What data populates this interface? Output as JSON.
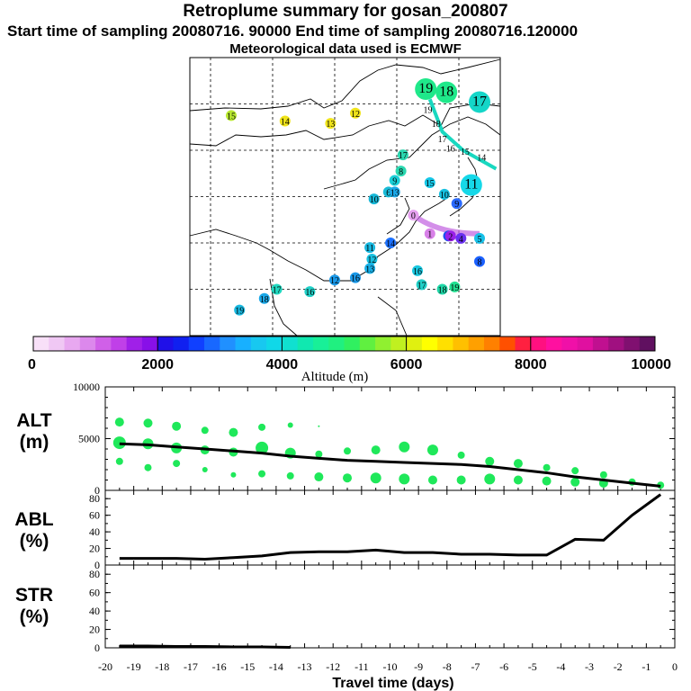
{
  "titles": {
    "main": "Retroplume summary for gosan_200807",
    "sampling": "Start time of sampling 20080716. 90000     End time of sampling 20080716.120000",
    "met": "Meteorological data used is ECMWF"
  },
  "map": {
    "labels": [
      {
        "t": "19",
        "lon": 127.0,
        "lat": 73.2,
        "c": "#1fe88a",
        "big": true
      },
      {
        "t": "18",
        "lon": 132.0,
        "lat": 72.5,
        "c": "#1fe88a",
        "big": true
      },
      {
        "t": "17",
        "lon": 140.0,
        "lat": 70.4,
        "c": "#14d6c8",
        "big": true
      },
      {
        "t": "15",
        "lon": 80.0,
        "lat": 67.5,
        "c": "#b8e830"
      },
      {
        "t": "14",
        "lon": 93.0,
        "lat": 66.3,
        "c": "#f0e41a"
      },
      {
        "t": "13",
        "lon": 104.0,
        "lat": 65.8,
        "c": "#f0e41a"
      },
      {
        "t": "12",
        "lon": 110.0,
        "lat": 68.0,
        "c": "#f0e41a"
      },
      {
        "t": "11",
        "lon": 138.0,
        "lat": 52.5,
        "c": "#16d8e8",
        "big": true
      },
      {
        "t": "9",
        "lon": 134.5,
        "lat": 48.5,
        "c": "#2a6aff"
      },
      {
        "t": "6",
        "lon": 132.5,
        "lat": 41.5,
        "c": "#1a4ff0"
      },
      {
        "t": "4",
        "lon": 135.5,
        "lat": 41.0,
        "c": "#6a30f0"
      },
      {
        "t": "2",
        "lon": 133.0,
        "lat": 41.5,
        "c": "#9a20e8"
      },
      {
        "t": "1",
        "lon": 128.0,
        "lat": 42.0,
        "c": "#d880e8"
      },
      {
        "t": "0",
        "lon": 124.0,
        "lat": 46.0,
        "c": "#e6a0f0"
      },
      {
        "t": "17",
        "lon": 121.5,
        "lat": 59.0,
        "c": "#2ad8b0"
      },
      {
        "t": "8",
        "lon": 121.0,
        "lat": 55.5,
        "c": "#2ad8b0"
      },
      {
        "t": "9",
        "lon": 119.5,
        "lat": 53.5,
        "c": "#1ad0d8"
      },
      {
        "t": "6",
        "lon": 118.0,
        "lat": 51.0,
        "c": "#1abcd8"
      },
      {
        "t": "13",
        "lon": 119.5,
        "lat": 51.0,
        "c": "#1aa8e8"
      },
      {
        "t": "10",
        "lon": 114.5,
        "lat": 49.5,
        "c": "#16b8d8"
      },
      {
        "t": "15",
        "lon": 128.0,
        "lat": 53.0,
        "c": "#16c8e8"
      },
      {
        "t": "10",
        "lon": 131.5,
        "lat": 50.5,
        "c": "#16c0e0"
      },
      {
        "t": "11",
        "lon": 113.5,
        "lat": 39.0,
        "c": "#18b8e0"
      },
      {
        "t": "14",
        "lon": 118.5,
        "lat": 40.0,
        "c": "#1a70ff"
      },
      {
        "t": "12",
        "lon": 114.0,
        "lat": 36.5,
        "c": "#18c0e0"
      },
      {
        "t": "13",
        "lon": 113.5,
        "lat": 34.5,
        "c": "#18b0e8"
      },
      {
        "t": "16",
        "lon": 125.0,
        "lat": 34.0,
        "c": "#18c8e0"
      },
      {
        "t": "16",
        "lon": 110.0,
        "lat": 32.5,
        "c": "#1898e8"
      },
      {
        "t": "12",
        "lon": 105.0,
        "lat": 32.0,
        "c": "#1898e8"
      },
      {
        "t": "17",
        "lon": 126.0,
        "lat": 31.0,
        "c": "#20d0c8"
      },
      {
        "t": "18",
        "lon": 131.0,
        "lat": 30.0,
        "c": "#20d8a8"
      },
      {
        "t": "19",
        "lon": 134.0,
        "lat": 30.5,
        "c": "#20e090"
      },
      {
        "t": "17",
        "lon": 91.0,
        "lat": 30.0,
        "c": "#20d8c0"
      },
      {
        "t": "16",
        "lon": 99.0,
        "lat": 29.5,
        "c": "#20d0c8"
      },
      {
        "t": "18",
        "lon": 88.0,
        "lat": 28.0,
        "c": "#1aa8e8"
      },
      {
        "t": "19",
        "lon": 82.0,
        "lat": 25.5,
        "c": "#18b8e0"
      },
      {
        "t": "8",
        "lon": 140.0,
        "lat": 36.0,
        "c": "#1a60ff"
      },
      {
        "t": "5",
        "lon": 140.0,
        "lat": 41.0,
        "c": "#16c0e8"
      },
      {
        "t": "19",
        "lon": 127.5,
        "lat": 68.8,
        "c": "#ffffff"
      },
      {
        "t": "18",
        "lon": 129.5,
        "lat": 65.8,
        "c": "#ffffff"
      },
      {
        "t": "17",
        "lon": 131.0,
        "lat": 62.5,
        "c": "#ffffff"
      },
      {
        "t": "16",
        "lon": 133.0,
        "lat": 60.5,
        "c": "#ffffff"
      },
      {
        "t": "15",
        "lon": 136.5,
        "lat": 59.8,
        "c": "#ffffff"
      },
      {
        "t": "14",
        "lon": 140.5,
        "lat": 58.5,
        "c": "#ffffff"
      }
    ]
  },
  "colorbar": {
    "ticks": [
      "0",
      "2000",
      "4000",
      "6000",
      "8000",
      "10000"
    ],
    "label": "Altitude (m)",
    "colors": [
      "#f8e0f8",
      "#f0c8f4",
      "#e8a8f0",
      "#dc88ec",
      "#d060e8",
      "#c040e8",
      "#a020e8",
      "#8810e8",
      "#2010e8",
      "#1020f0",
      "#1040ff",
      "#1868ff",
      "#2090ff",
      "#18b0ff",
      "#18c8f0",
      "#10d8e8",
      "#10e0d0",
      "#10e8b0",
      "#18f098",
      "#20f080",
      "#30f060",
      "#60f040",
      "#90f030",
      "#c0f020",
      "#e0f010",
      "#ffff00",
      "#ffe000",
      "#ffc000",
      "#ffa000",
      "#ff8000",
      "#ff5000",
      "#ff2040",
      "#ff1080",
      "#ff10a0",
      "#f010a8",
      "#e010a0",
      "#c01090",
      "#a01080",
      "#801070",
      "#601060"
    ]
  },
  "chart_data": [
    {
      "type": "scatter",
      "ylabel": "ALT\n(m)",
      "ylim": [
        0,
        10000
      ],
      "yticks": [
        "0",
        "5000",
        "10000"
      ],
      "x": [
        -19.5,
        -18.5,
        -17.5,
        -16.5,
        -15.5,
        -14.5,
        -13.5,
        -12.5,
        -11.5,
        -10.5,
        -9.5,
        -8.5,
        -7.5,
        -6.5,
        -5.5,
        -4.5,
        -3.5,
        -2.5,
        -1.5,
        -0.5
      ],
      "mean": [
        4500,
        4400,
        4200,
        4000,
        3800,
        3600,
        3300,
        3100,
        2900,
        2800,
        2700,
        2600,
        2500,
        2300,
        2000,
        1700,
        1300,
        1000,
        700,
        400
      ],
      "blob_color": "#1fe85a",
      "blobs": [
        {
          "x": -19.5,
          "y": 6600,
          "r": 5
        },
        {
          "x": -19.5,
          "y": 4600,
          "r": 7
        },
        {
          "x": -19.5,
          "y": 2800,
          "r": 4
        },
        {
          "x": -18.5,
          "y": 6500,
          "r": 5
        },
        {
          "x": -18.5,
          "y": 4500,
          "r": 6
        },
        {
          "x": -18.5,
          "y": 2200,
          "r": 4
        },
        {
          "x": -17.5,
          "y": 6200,
          "r": 5
        },
        {
          "x": -17.5,
          "y": 4100,
          "r": 6
        },
        {
          "x": -17.5,
          "y": 2600,
          "r": 4
        },
        {
          "x": -16.5,
          "y": 5800,
          "r": 4
        },
        {
          "x": -16.5,
          "y": 3900,
          "r": 5
        },
        {
          "x": -16.5,
          "y": 2000,
          "r": 3
        },
        {
          "x": -15.5,
          "y": 5600,
          "r": 5
        },
        {
          "x": -15.5,
          "y": 3700,
          "r": 5
        },
        {
          "x": -15.5,
          "y": 1500,
          "r": 3
        },
        {
          "x": -14.5,
          "y": 6100,
          "r": 4
        },
        {
          "x": -14.5,
          "y": 4100,
          "r": 7
        },
        {
          "x": -14.5,
          "y": 1600,
          "r": 4
        },
        {
          "x": -13.5,
          "y": 6300,
          "r": 3
        },
        {
          "x": -13.5,
          "y": 3600,
          "r": 6
        },
        {
          "x": -13.5,
          "y": 1400,
          "r": 4
        },
        {
          "x": -12.5,
          "y": 6200,
          "r": 1
        },
        {
          "x": -12.5,
          "y": 3500,
          "r": 4
        },
        {
          "x": -12.5,
          "y": 1300,
          "r": 5
        },
        {
          "x": -11.5,
          "y": 3800,
          "r": 4
        },
        {
          "x": -11.5,
          "y": 1200,
          "r": 5
        },
        {
          "x": -10.5,
          "y": 3900,
          "r": 5
        },
        {
          "x": -10.5,
          "y": 1200,
          "r": 6
        },
        {
          "x": -9.5,
          "y": 4200,
          "r": 6
        },
        {
          "x": -9.5,
          "y": 1100,
          "r": 6
        },
        {
          "x": -8.5,
          "y": 3900,
          "r": 6
        },
        {
          "x": -8.5,
          "y": 1000,
          "r": 5
        },
        {
          "x": -7.5,
          "y": 3400,
          "r": 4
        },
        {
          "x": -7.5,
          "y": 1000,
          "r": 5
        },
        {
          "x": -6.5,
          "y": 2800,
          "r": 5
        },
        {
          "x": -6.5,
          "y": 1100,
          "r": 6
        },
        {
          "x": -5.5,
          "y": 2600,
          "r": 5
        },
        {
          "x": -5.5,
          "y": 1000,
          "r": 5
        },
        {
          "x": -4.5,
          "y": 2200,
          "r": 4
        },
        {
          "x": -4.5,
          "y": 900,
          "r": 5
        },
        {
          "x": -3.5,
          "y": 1900,
          "r": 4
        },
        {
          "x": -3.5,
          "y": 800,
          "r": 5
        },
        {
          "x": -2.5,
          "y": 1500,
          "r": 4
        },
        {
          "x": -2.5,
          "y": 700,
          "r": 5
        },
        {
          "x": -1.5,
          "y": 800,
          "r": 4
        },
        {
          "x": -0.5,
          "y": 500,
          "r": 4
        }
      ]
    },
    {
      "type": "line",
      "ylabel": "ABL\n(%)",
      "ylim": [
        0,
        90
      ],
      "yticks": [
        "0",
        "20",
        "40",
        "60",
        "80"
      ],
      "x": [
        -19.5,
        -18.5,
        -17.5,
        -16.5,
        -15.5,
        -14.5,
        -13.5,
        -12.5,
        -11.5,
        -10.5,
        -9.5,
        -8.5,
        -7.5,
        -6.5,
        -5.5,
        -4.5,
        -3.5,
        -2.5,
        -1.5,
        -0.5
      ],
      "values": [
        8,
        8,
        8,
        7,
        9,
        11,
        15,
        16,
        16,
        18,
        15,
        15,
        13,
        13,
        12,
        12,
        31,
        30,
        60,
        85
      ]
    },
    {
      "type": "line",
      "ylabel": "STR\n(%)",
      "ylim": [
        0,
        90
      ],
      "yticks": [
        "0",
        "20",
        "40",
        "60",
        "80"
      ],
      "x": [
        -19.5,
        -18.5,
        -17.5,
        -16.5,
        -15.5,
        -14.5,
        -13.5
      ],
      "values": [
        2,
        2,
        1.5,
        1.5,
        1,
        1,
        0.5
      ]
    }
  ],
  "xaxis": {
    "ticks": [
      "-20",
      "-19",
      "-18",
      "-17",
      "-16",
      "-15",
      "-14",
      "-13",
      "-12",
      "-11",
      "-10",
      "-9",
      "-8",
      "-7",
      "-6",
      "-5",
      "-4",
      "-3",
      "-2",
      "-1",
      "0"
    ],
    "label": "Travel time (days)"
  }
}
